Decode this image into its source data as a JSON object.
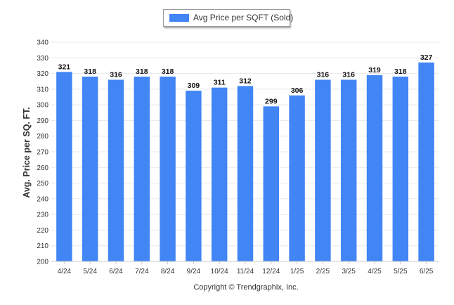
{
  "chart_data": {
    "type": "bar",
    "categories": [
      "4/24",
      "5/24",
      "6/24",
      "7/24",
      "8/24",
      "9/24",
      "10/24",
      "11/24",
      "12/24",
      "1/25",
      "2/25",
      "3/25",
      "4/25",
      "5/25",
      "6/25"
    ],
    "series": [
      {
        "name": "Avg Price per SQFT (Sold)",
        "values": [
          321,
          318,
          316,
          318,
          318,
          309,
          311,
          312,
          299,
          306,
          316,
          316,
          319,
          318,
          327
        ]
      }
    ],
    "ylabel": "Avg. Price per SQ. FT.",
    "xlabel": "",
    "ylim": [
      200,
      340
    ],
    "yticks": [
      200,
      210,
      220,
      230,
      240,
      250,
      260,
      270,
      280,
      290,
      300,
      310,
      320,
      330,
      340
    ],
    "legend_position": "top-center",
    "grid": true,
    "data_labels": true
  },
  "colors": {
    "bar": "#4285f4",
    "grid": "#e8e8e8",
    "text": "#333333"
  },
  "credit": "Copyright © Trendgraphix, Inc."
}
